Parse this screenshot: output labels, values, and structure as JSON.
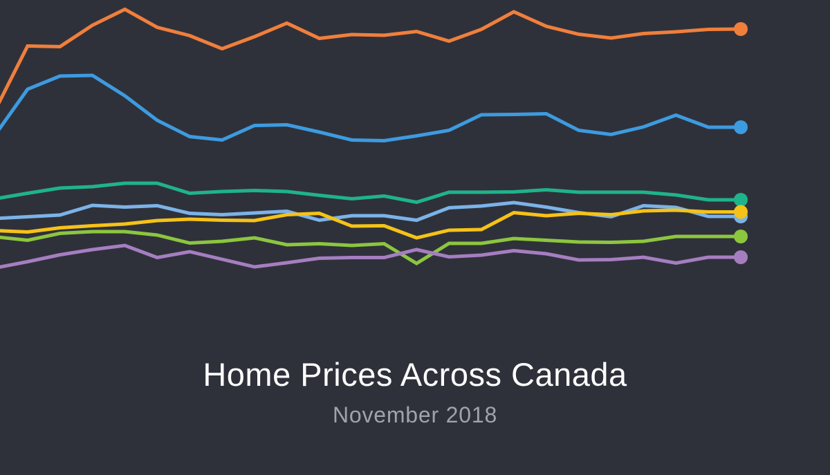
{
  "title": "Home Prices Across Canada",
  "subtitle": "November 2018",
  "chart_data": {
    "type": "line",
    "title": "Home Prices Across Canada",
    "subtitle": "November 2018",
    "xlabel": "",
    "ylabel": "",
    "grid": false,
    "legend": "none",
    "ylim": [
      0,
      100
    ],
    "x": [
      0,
      1,
      2,
      3,
      4,
      5,
      6,
      7,
      8,
      9,
      10,
      11,
      12,
      13,
      14,
      15,
      16,
      17,
      18,
      19,
      20,
      21,
      22,
      23
    ],
    "series": [
      {
        "color": "#f07f3c",
        "values": [
          68.1,
          86.7,
          86.5,
          92.7,
          97.3,
          92.1,
          89.7,
          85.9,
          89.4,
          93.3,
          88.9,
          90.0,
          89.8,
          90.9,
          88.1,
          91.5,
          96.6,
          92.4,
          90.1,
          89.0,
          90.3,
          90.8,
          91.5,
          91.6
        ]
      },
      {
        "color": "#3d9be0",
        "values": [
          61.0,
          74.2,
          78.0,
          78.2,
          72.3,
          65.2,
          60.5,
          59.5,
          63.7,
          63.9,
          61.8,
          59.5,
          59.3,
          60.7,
          62.3,
          66.8,
          66.9,
          67.1,
          62.3,
          61.1,
          63.3,
          66.7,
          63.2,
          63.2
        ]
      },
      {
        "color": "#1fb38a",
        "values": [
          42.5,
          44.1,
          45.6,
          46.0,
          47.0,
          47.0,
          44.1,
          44.6,
          44.9,
          44.6,
          43.5,
          42.5,
          43.3,
          41.5,
          44.4,
          44.4,
          44.5,
          45.1,
          44.4,
          44.4,
          44.4,
          43.6,
          42.2,
          42.2
        ]
      },
      {
        "color": "#7bb3e8",
        "values": [
          36.8,
          37.3,
          37.8,
          40.6,
          40.1,
          40.5,
          38.3,
          37.9,
          38.4,
          38.9,
          36.3,
          37.6,
          37.6,
          36.3,
          39.9,
          40.4,
          41.4,
          40.1,
          38.5,
          37.3,
          40.5,
          40.0,
          37.4,
          37.4
        ]
      },
      {
        "color": "#f5c218",
        "values": [
          33.3,
          32.9,
          34.1,
          34.7,
          35.2,
          36.2,
          36.6,
          36.3,
          36.2,
          37.9,
          38.3,
          34.6,
          34.7,
          31.2,
          33.4,
          33.6,
          38.5,
          37.6,
          38.3,
          37.9,
          39.0,
          39.2,
          38.7,
          38.7
        ]
      },
      {
        "color": "#8cc63f",
        "values": [
          31.5,
          30.5,
          32.5,
          33.0,
          33.0,
          32.0,
          29.7,
          30.2,
          31.2,
          29.2,
          29.5,
          29.0,
          29.5,
          23.8,
          29.6,
          29.6,
          31.0,
          30.5,
          30.0,
          29.9,
          30.2,
          31.6,
          31.6,
          31.6
        ]
      },
      {
        "color": "#a57ec0",
        "values": [
          22.5,
          24.3,
          26.3,
          27.8,
          29.0,
          25.5,
          27.2,
          25.0,
          22.8,
          24.0,
          25.3,
          25.5,
          25.5,
          27.8,
          25.7,
          26.2,
          27.5,
          26.6,
          24.8,
          24.9,
          25.6,
          23.9,
          25.6,
          25.6
        ]
      }
    ]
  }
}
